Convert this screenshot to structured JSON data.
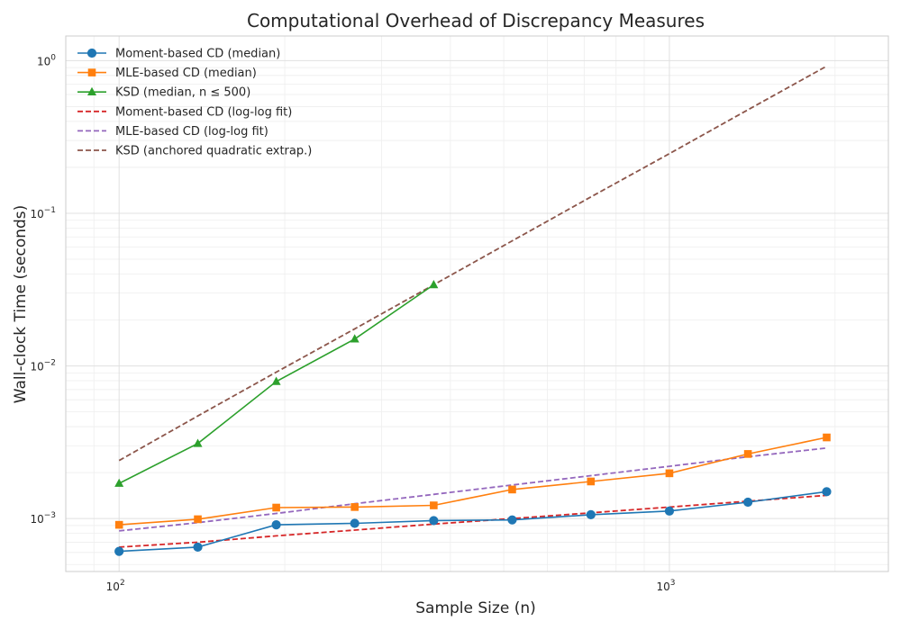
{
  "chart_data": {
    "type": "line",
    "title": "Computational Overhead of Discrepancy Measures",
    "xlabel": "Sample Size (n)",
    "ylabel": "Wall-clock Time (seconds)",
    "xscale": "log",
    "yscale": "log",
    "xlim": [
      80,
      2500
    ],
    "ylim": [
      0.00045,
      1.45
    ],
    "grid": true,
    "legend_position": "top-left",
    "x_tick_labels": [
      {
        "value": 100,
        "base": "10",
        "exp": "2"
      },
      {
        "value": 1000,
        "base": "10",
        "exp": "3"
      }
    ],
    "y_tick_labels": [
      {
        "value": 0.001,
        "base": "10",
        "exp": "−3"
      },
      {
        "value": 0.01,
        "base": "10",
        "exp": "−2"
      },
      {
        "value": 0.1,
        "base": "10",
        "exp": "−1"
      },
      {
        "value": 1,
        "base": "10",
        "exp": "0"
      }
    ],
    "series": [
      {
        "name": "Moment-based CD (median)",
        "color": "#1f77b4",
        "style": "solid",
        "marker": "circle",
        "x": [
          100,
          139,
          193,
          268,
          373,
          518,
          720,
          1000,
          1389,
          1931
        ],
        "y": [
          0.00061,
          0.00065,
          0.00091,
          0.00093,
          0.00097,
          0.00098,
          0.00106,
          0.00112,
          0.00128,
          0.0015
        ]
      },
      {
        "name": "MLE-based CD (median)",
        "color": "#ff7f0e",
        "style": "solid",
        "marker": "square",
        "x": [
          100,
          139,
          193,
          268,
          373,
          518,
          720,
          1000,
          1389,
          1931
        ],
        "y": [
          0.00091,
          0.00099,
          0.00118,
          0.00119,
          0.00122,
          0.00155,
          0.00175,
          0.00198,
          0.00265,
          0.0034
        ]
      },
      {
        "name": "KSD (median, n ≤ 500)",
        "color": "#2ca02c",
        "style": "solid",
        "marker": "triangle",
        "x": [
          100,
          139,
          193,
          268,
          373
        ],
        "y": [
          0.0017,
          0.0031,
          0.0079,
          0.015,
          0.034
        ]
      },
      {
        "name": "Moment-based CD (log-log fit)",
        "color": "#d62728",
        "style": "dashed",
        "marker": "none",
        "x": [
          100,
          139,
          193,
          268,
          373,
          518,
          720,
          1000,
          1389,
          1931
        ],
        "y": [
          0.00065,
          0.0007,
          0.00077,
          0.00084,
          0.00092,
          0.001,
          0.00109,
          0.00119,
          0.0013,
          0.00142
        ]
      },
      {
        "name": "MLE-based CD (log-log fit)",
        "color": "#9467bd",
        "style": "dashed",
        "marker": "none",
        "x": [
          100,
          139,
          193,
          268,
          373,
          518,
          720,
          1000,
          1389,
          1931
        ],
        "y": [
          0.00083,
          0.00094,
          0.00108,
          0.00125,
          0.00144,
          0.00166,
          0.00191,
          0.0022,
          0.00254,
          0.0029
        ]
      },
      {
        "name": "KSD (anchored quadratic extrap.)",
        "color": "#8c564b",
        "style": "dashed",
        "marker": "none",
        "x": [
          100,
          139,
          193,
          268,
          373,
          518,
          720,
          1000,
          1389,
          1931
        ],
        "y": [
          0.0024,
          0.0047,
          0.0091,
          0.0175,
          0.034,
          0.066,
          0.128,
          0.246,
          0.476,
          0.92
        ]
      }
    ]
  }
}
